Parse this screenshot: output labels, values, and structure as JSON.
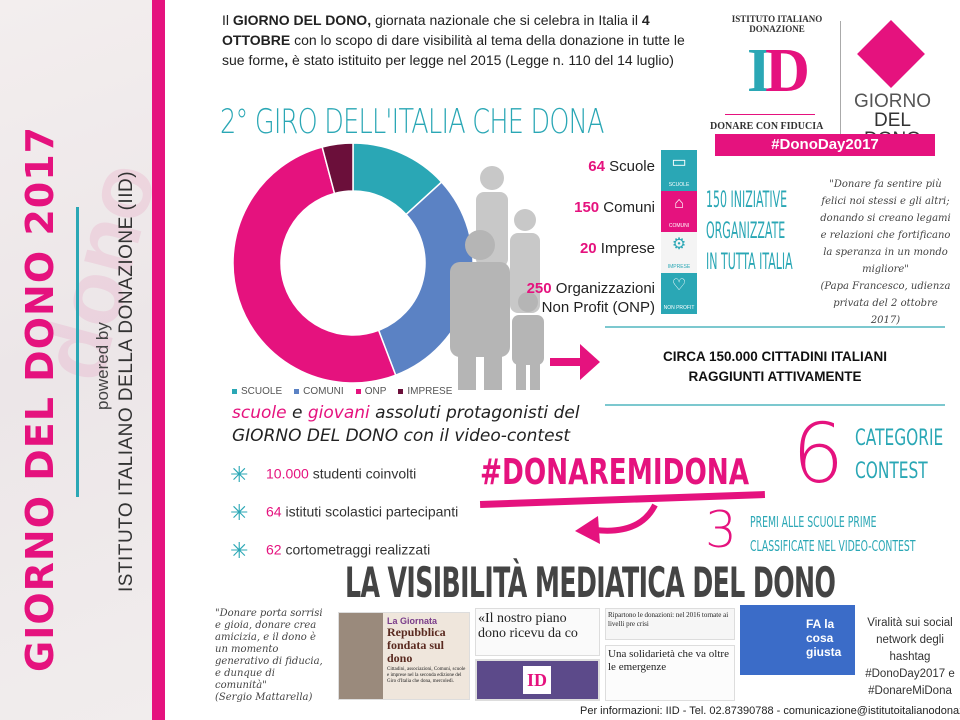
{
  "sidebar": {
    "title": "GIORNO DEL DONO 2017",
    "powered_by": "powered by",
    "org": "ISTITUTO ITALIANO DELLA DONAZIONE (IID)"
  },
  "intro": {
    "p1": "Il ",
    "b1": "GIORNO DEL DONO,",
    "p2": " giornata nazionale che si celebra in Italia il ",
    "b2": "4 OTTOBRE",
    "p3": " con lo scopo di dare visibilità al tema della donazione in tutte le sue forme",
    "b3": ",",
    "p4": " è stato istituito per legge nel 2015 (Legge n. 110 del 14 luglio)"
  },
  "heading": "2° GIRO DELL'ITALIA CHE DONA",
  "logo": {
    "arc_text": "ISTITUTO ITALIANO DONAZIONE",
    "monogram": "ID",
    "motto": "DONARE CON FIDUCIA",
    "giorno": "GIORNO",
    "del_dono": "DEL DONO",
    "hashtag": "#DonoDay2017"
  },
  "chart_data": {
    "type": "pie",
    "subtype": "donut",
    "categories": [
      "SCUOLE",
      "COMUNI",
      "ONP",
      "IMPRESE"
    ],
    "values": [
      64,
      150,
      250,
      20
    ],
    "colors": [
      "#2aa7b5",
      "#5b82c4",
      "#e5127e",
      "#6b0f3a"
    ],
    "legend": "bottom"
  },
  "counts": [
    {
      "num": "64",
      "label": " Scuole"
    },
    {
      "num": "150",
      "label": " Comuni"
    },
    {
      "num": "20",
      "label": " Imprese"
    },
    {
      "num": "250",
      "label": " Organizzazioni",
      "label2": "Non Profit (ONP)"
    }
  ],
  "icons": [
    {
      "name": "book-icon",
      "glyph": "▭",
      "caption": "SCUOLE",
      "color": "#2aa7b5"
    },
    {
      "name": "building-icon",
      "glyph": "⌂",
      "caption": "COMUNI",
      "color": "#e5127e"
    },
    {
      "name": "gears-icon",
      "glyph": "⚙",
      "caption": "IMPRESE",
      "color": "#f4f4f4"
    },
    {
      "name": "heart-icon",
      "glyph": "♡",
      "caption": "NON PROFIT",
      "color": "#2aa7b5"
    }
  ],
  "iniziative": [
    "150 INIZIATIVE",
    "ORGANIZZATE",
    "IN TUTTA ITALIA"
  ],
  "pope_quote": {
    "text": "\"Donare fa sentire più felici noi stessi e gli altri; donando si creano legami e relazioni che fortificano la speranza in un mondo migliore\"",
    "source": "(Papa Francesco, udienza privata del 2 ottobre 2017)"
  },
  "circa": {
    "line1": "CIRCA 150.000 CITTADINI ITALIANI",
    "line2": "RAGGIUNTI ATTIVAMENTE"
  },
  "scuole": {
    "w1": "scuole",
    "w2": " e ",
    "w3": "giovani",
    "w4": " assoluti protagonisti del",
    "line2": "GIORNO DEL DONO con il video-contest"
  },
  "bullets": [
    {
      "num": "10.000",
      "text": " studenti coinvolti"
    },
    {
      "num": "64",
      "text": " istituti scolastici partecipanti"
    },
    {
      "num": "62",
      "text": " cortometraggi realizzati"
    }
  ],
  "contest_hashtag": "#DONAREMIDONA",
  "categorie": {
    "num": "6",
    "l1": "CATEGORIE",
    "l2": "CONTEST"
  },
  "premi": {
    "num": "3",
    "l1": "PREMI ALLE SCUOLE PRIME",
    "l2": "CLASSIFICATE NEL VIDEO-CONTEST"
  },
  "visibility_title": "LA VISIBILITÀ MEDIATICA DEL DONO",
  "mattarella": {
    "text": "\"Donare porta sorrisi e gioia, donare crea amicizia, e il dono è un momento generativo di fiducia, e dunque di comunità\"",
    "source": "(Sergio Mattarella)"
  },
  "clips": {
    "c1_kicker": "La Giornata",
    "c1_head": "Repubblica fondata sul dono",
    "c1_body": "Cittadini, associazioni, Comuni, scuole e imprese nel la seconda edizione del Giro d'Italia che dona, mercoledì.",
    "c2_head": "«Il nostro piano dono ricevu da co",
    "c3_head": "Ripartono le donazioni: nel 2016 tornate ai livelli pre crisi",
    "c4_head": "Una solidarietà che va oltre le emergenze",
    "c5_head": "FA la cosa giusta"
  },
  "viral": "Viralità sui social network degli hashtag #DonoDay2017 e #DonareMiDona",
  "footer": "Per informazioni: IID - Tel. 02.87390788 - comunicazione@istitutoitalianodonazione.it"
}
